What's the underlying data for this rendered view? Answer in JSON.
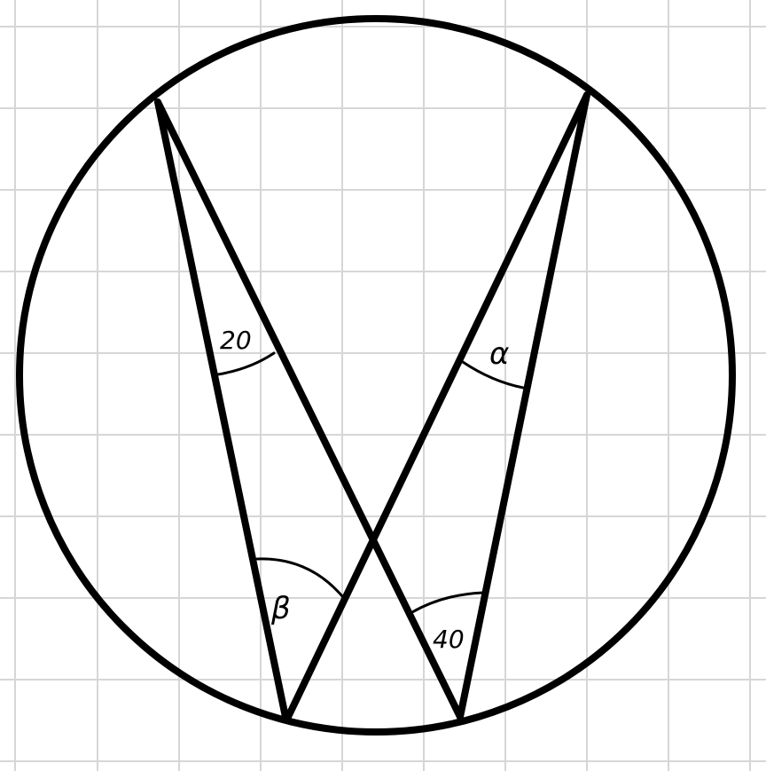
{
  "colors": {
    "background": "#ffffff",
    "grid": "#d6d6d6",
    "ink": "#000000"
  },
  "labels": {
    "angle_20": "20",
    "angle_alpha": "α",
    "angle_beta": "β",
    "angle_40": "40"
  }
}
